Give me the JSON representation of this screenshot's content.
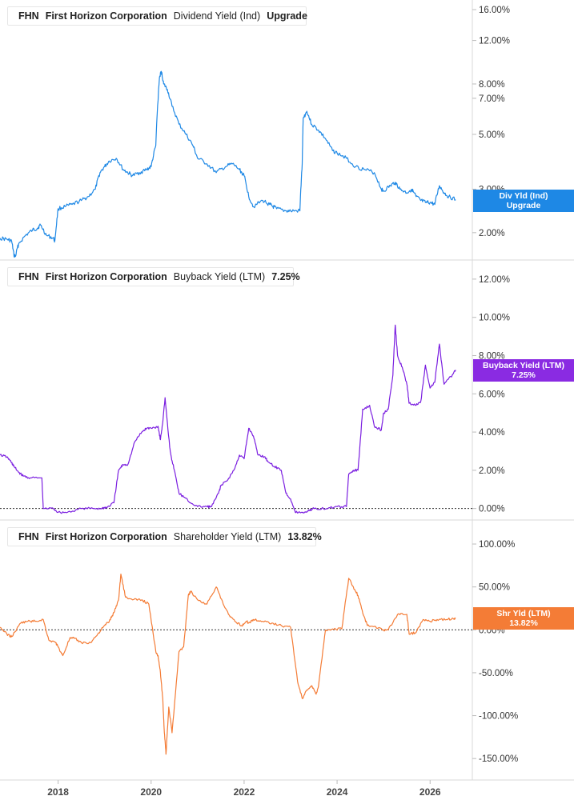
{
  "chart_data": [
    {
      "type": "line",
      "ticker": "FHN",
      "company": "First Horizon Corporation",
      "metric": "Dividend Yield (Ind)",
      "current": "Upgrade",
      "badge": [
        "Div Yld (Ind)",
        "Upgrade"
      ],
      "color": "#1e88e5",
      "yscale": "log",
      "yticks": [
        {
          "label": "16.00%",
          "value": 16
        },
        {
          "label": "12.00%",
          "value": 12
        },
        {
          "label": "8.00%",
          "value": 8
        },
        {
          "label": "7.00%",
          "value": 7
        },
        {
          "label": "5.00%",
          "value": 5
        },
        {
          "label": "3.00%",
          "value": 3
        },
        {
          "label": "2.00%",
          "value": 2
        }
      ],
      "badge_value": 2.72,
      "x": [
        2016.75,
        2016.9,
        2017.0,
        2017.05,
        2017.08,
        2017.15,
        2017.3,
        2017.45,
        2017.55,
        2017.62,
        2017.75,
        2017.9,
        2017.93,
        2018.0,
        2018.15,
        2018.3,
        2018.5,
        2018.65,
        2018.8,
        2018.9,
        2019.0,
        2019.1,
        2019.25,
        2019.4,
        2019.5,
        2019.6,
        2019.75,
        2019.9,
        2020.0,
        2020.1,
        2020.18,
        2020.22,
        2020.27,
        2020.35,
        2020.45,
        2020.6,
        2020.75,
        2020.9,
        2021.0,
        2021.2,
        2021.4,
        2021.6,
        2021.75,
        2021.9,
        2022.0,
        2022.1,
        2022.2,
        2022.4,
        2022.55,
        2022.62,
        2022.7,
        2022.9,
        2023.0,
        2023.2,
        2023.25,
        2023.27,
        2023.35,
        2023.45,
        2023.6,
        2023.75,
        2023.9,
        2024.0,
        2024.2,
        2024.4,
        2024.6,
        2024.8,
        2024.95,
        2025.0,
        2025.15,
        2025.25,
        2025.35,
        2025.5,
        2025.6,
        2025.7,
        2025.8,
        2025.9,
        2026.0,
        2026.1,
        2026.2,
        2026.3,
        2026.4,
        2026.55
      ],
      "y": [
        1.9,
        1.88,
        1.85,
        1.62,
        1.6,
        1.8,
        1.95,
        2.05,
        2.08,
        2.15,
        1.95,
        1.9,
        1.85,
        2.5,
        2.55,
        2.6,
        2.7,
        2.8,
        3.0,
        3.5,
        3.7,
        3.9,
        4.0,
        3.6,
        3.5,
        3.4,
        3.5,
        3.6,
        3.7,
        4.5,
        8.5,
        9.0,
        8.0,
        7.6,
        6.5,
        5.5,
        5.0,
        4.5,
        4.0,
        3.8,
        3.5,
        3.7,
        3.8,
        3.6,
        3.4,
        2.8,
        2.55,
        2.7,
        2.6,
        2.55,
        2.5,
        2.45,
        2.45,
        2.45,
        3.8,
        5.8,
        6.2,
        5.5,
        5.2,
        4.8,
        4.3,
        4.2,
        4.0,
        3.7,
        3.6,
        3.5,
        3.0,
        2.95,
        3.1,
        3.2,
        3.0,
        2.9,
        3.0,
        2.8,
        2.7,
        2.65,
        2.65,
        2.6,
        3.1,
        2.9,
        2.8,
        2.72
      ]
    },
    {
      "type": "line",
      "ticker": "FHN",
      "company": "First Horizon Corporation",
      "metric": "Buyback Yield (LTM)",
      "current": "7.25%",
      "badge": [
        "Buyback Yield (LTM)",
        "7.25%"
      ],
      "color": "#7b1fe0",
      "yscale": "linear",
      "yticks": [
        {
          "label": "12.00%",
          "value": 12
        },
        {
          "label": "10.00%",
          "value": 10
        },
        {
          "label": "8.00%",
          "value": 8
        },
        {
          "label": "6.00%",
          "value": 6
        },
        {
          "label": "4.00%",
          "value": 4
        },
        {
          "label": "2.00%",
          "value": 2
        },
        {
          "label": "0.00%",
          "value": 0
        }
      ],
      "zero_line": 0,
      "badge_value": 7.25,
      "x": [
        2016.75,
        2016.9,
        2017.0,
        2017.05,
        2017.15,
        2017.25,
        2017.4,
        2017.65,
        2017.68,
        2017.9,
        2018.0,
        2018.2,
        2018.5,
        2018.75,
        2018.92,
        2019.0,
        2019.05,
        2019.2,
        2019.3,
        2019.4,
        2019.5,
        2019.65,
        2019.8,
        2019.9,
        2020.0,
        2020.15,
        2020.2,
        2020.25,
        2020.3,
        2020.4,
        2020.45,
        2020.5,
        2020.6,
        2020.7,
        2020.85,
        2021.0,
        2021.2,
        2021.3,
        2021.45,
        2021.5,
        2021.65,
        2021.8,
        2021.9,
        2022.0,
        2022.1,
        2022.2,
        2022.3,
        2022.45,
        2022.5,
        2022.65,
        2022.8,
        2022.9,
        2023.0,
        2023.1,
        2023.2,
        2023.3,
        2023.4,
        2023.5,
        2023.8,
        2024.0,
        2024.2,
        2024.25,
        2024.35,
        2024.45,
        2024.55,
        2024.7,
        2024.8,
        2024.95,
        2025.0,
        2025.1,
        2025.2,
        2025.25,
        2025.3,
        2025.4,
        2025.5,
        2025.55,
        2025.7,
        2025.8,
        2025.9,
        2026.0,
        2026.1,
        2026.2,
        2026.3,
        2026.45,
        2026.55
      ],
      "y": [
        2.8,
        2.7,
        2.4,
        2.2,
        1.9,
        1.7,
        1.6,
        1.6,
        0.0,
        0.0,
        -0.2,
        -0.2,
        0.0,
        0.0,
        0.0,
        0.05,
        0.05,
        0.3,
        2.0,
        2.3,
        2.3,
        3.5,
        4.0,
        4.2,
        4.2,
        4.3,
        3.6,
        4.5,
        5.8,
        3.2,
        2.5,
        2.0,
        0.8,
        0.6,
        0.3,
        0.1,
        0.1,
        0.1,
        0.8,
        1.2,
        1.5,
        2.1,
        2.8,
        2.6,
        4.2,
        3.8,
        2.8,
        2.7,
        2.5,
        2.2,
        2.0,
        0.8,
        0.5,
        -0.2,
        -0.2,
        -0.2,
        -0.1,
        0.0,
        0.0,
        0.1,
        0.1,
        1.8,
        2.0,
        2.0,
        5.2,
        5.4,
        4.3,
        4.1,
        5.0,
        5.2,
        7.0,
        9.6,
        8.0,
        7.4,
        6.5,
        5.5,
        5.4,
        5.6,
        7.5,
        6.3,
        6.6,
        8.6,
        6.5,
        6.9,
        7.25
      ]
    },
    {
      "type": "line",
      "ticker": "FHN",
      "company": "First Horizon Corporation",
      "metric": "Shareholder Yield (LTM)",
      "current": "13.82%",
      "badge": [
        "Shr Yld (LTM)",
        "13.82%"
      ],
      "color": "#f47c36",
      "yscale": "linear",
      "yticks": [
        {
          "label": "100.00%",
          "value": 100
        },
        {
          "label": "50.00%",
          "value": 50
        },
        {
          "label": "0.00%",
          "value": 0
        },
        {
          "label": "-50.00%",
          "value": -50
        },
        {
          "label": "-100.00%",
          "value": -100
        },
        {
          "label": "-150.00%",
          "value": -150
        }
      ],
      "zero_line": 0,
      "badge_value": 13.82,
      "x": [
        2016.75,
        2016.9,
        2017.0,
        2017.2,
        2017.35,
        2017.5,
        2017.68,
        2017.8,
        2017.95,
        2018.0,
        2018.1,
        2018.25,
        2018.35,
        2018.5,
        2018.7,
        2018.85,
        2019.0,
        2019.1,
        2019.2,
        2019.3,
        2019.35,
        2019.45,
        2019.6,
        2019.8,
        2019.95,
        2020.1,
        2020.15,
        2020.2,
        2020.25,
        2020.28,
        2020.32,
        2020.38,
        2020.45,
        2020.6,
        2020.7,
        2020.8,
        2020.85,
        2021.0,
        2021.2,
        2021.4,
        2021.55,
        2021.7,
        2021.8,
        2021.95,
        2022.05,
        2022.1,
        2022.2,
        2022.4,
        2022.6,
        2022.8,
        2023.0,
        2023.15,
        2023.25,
        2023.35,
        2023.45,
        2023.55,
        2023.6,
        2023.75,
        2023.9,
        2024.1,
        2024.25,
        2024.35,
        2024.45,
        2024.55,
        2024.65,
        2024.8,
        2025.0,
        2025.1,
        2025.3,
        2025.5,
        2025.55,
        2025.7,
        2025.85,
        2026.0,
        2026.15,
        2026.35,
        2026.5,
        2026.55
      ],
      "y": [
        3,
        -5,
        -8,
        8,
        10,
        10,
        12,
        -12,
        -15,
        -20,
        -30,
        -10,
        -10,
        -15,
        -15,
        -5,
        5,
        10,
        20,
        35,
        65,
        38,
        35,
        35,
        30,
        -25,
        -30,
        -50,
        -80,
        -115,
        -145,
        -90,
        -120,
        -25,
        -20,
        40,
        45,
        35,
        30,
        50,
        30,
        15,
        10,
        5,
        10,
        8,
        12,
        10,
        8,
        5,
        3,
        -60,
        -80,
        -70,
        -65,
        -75,
        -65,
        0,
        1,
        1,
        60,
        50,
        40,
        20,
        5,
        4,
        0,
        0,
        18,
        18,
        -5,
        -3,
        12,
        10,
        12,
        12,
        13,
        13.82
      ]
    }
  ],
  "x_axis": {
    "ticks": [
      {
        "label": "2018",
        "value": 2018
      },
      {
        "label": "2020",
        "value": 2020
      },
      {
        "label": "2022",
        "value": 2022
      },
      {
        "label": "2024",
        "value": 2024
      },
      {
        "label": "2026",
        "value": 2026
      }
    ],
    "xlim": [
      2016.75,
      2026.65
    ]
  }
}
